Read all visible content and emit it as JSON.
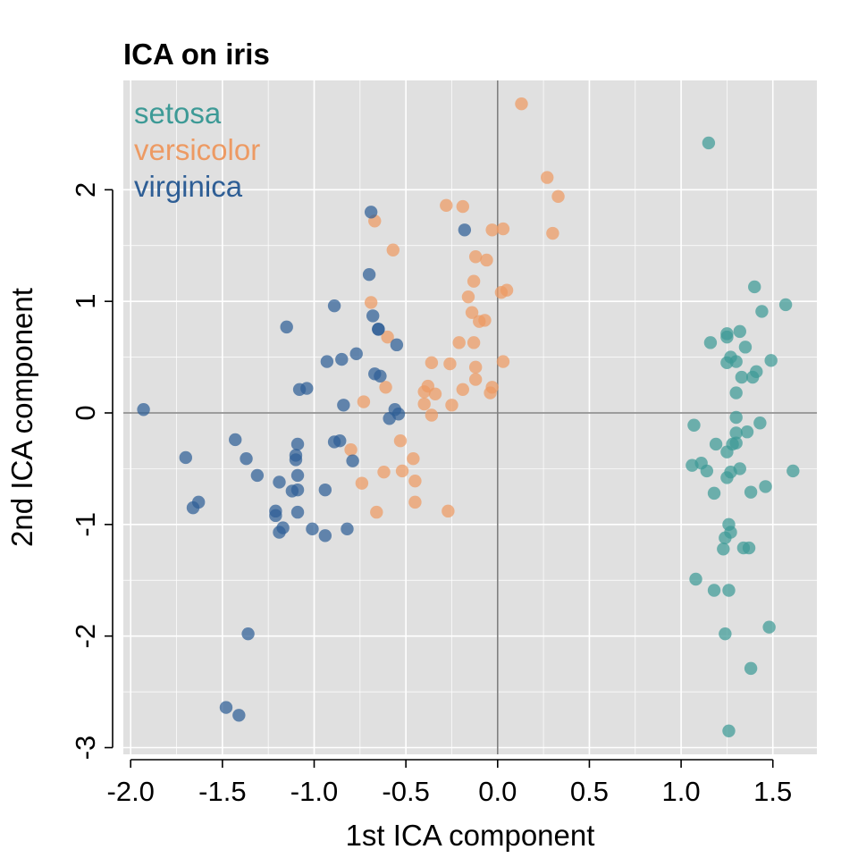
{
  "chart_data": {
    "type": "scatter",
    "title": "ICA on iris",
    "xlabel": "1st ICA component",
    "ylabel": "2nd ICA component",
    "xlim": [
      -2.04,
      1.74
    ],
    "ylim": [
      -3.06,
      2.98
    ],
    "xticks": [
      -2.0,
      -1.5,
      -1.0,
      -0.5,
      0.0,
      0.5,
      1.0,
      1.5
    ],
    "xtick_labels": [
      "-2.0",
      "-1.5",
      "-1.0",
      "-0.5",
      "0.0",
      "0.5",
      "1.0",
      "1.5"
    ],
    "yticks": [
      -3,
      -2,
      -1,
      0,
      1,
      2
    ],
    "ytick_labels": [
      "-3",
      "-2",
      "-1",
      "0",
      "1",
      "2"
    ],
    "grid": true,
    "reference_lines": {
      "x": 0,
      "y": 0
    },
    "legend_position": "top-left",
    "colors": {
      "panel_background": "#e0e0e0",
      "grid": "#ffffff",
      "reference_line": "#808080"
    },
    "series": [
      {
        "name": "setosa",
        "color": "#3d9a96",
        "points": [
          [
            1.15,
            2.42
          ],
          [
            1.4,
            1.13
          ],
          [
            1.57,
            0.97
          ],
          [
            1.44,
            0.91
          ],
          [
            1.25,
            0.71
          ],
          [
            1.32,
            0.73
          ],
          [
            1.16,
            0.63
          ],
          [
            1.25,
            0.68
          ],
          [
            1.35,
            0.59
          ],
          [
            1.27,
            0.5
          ],
          [
            1.49,
            0.47
          ],
          [
            1.3,
            0.46
          ],
          [
            1.25,
            0.45
          ],
          [
            1.41,
            0.37
          ],
          [
            1.33,
            0.32
          ],
          [
            1.39,
            0.32
          ],
          [
            1.3,
            0.18
          ],
          [
            1.3,
            -0.04
          ],
          [
            1.43,
            -0.09
          ],
          [
            1.07,
            -0.11
          ],
          [
            1.3,
            -0.18
          ],
          [
            1.36,
            -0.17
          ],
          [
            1.19,
            -0.28
          ],
          [
            1.3,
            -0.27
          ],
          [
            1.25,
            -0.35
          ],
          [
            1.28,
            -0.28
          ],
          [
            1.06,
            -0.47
          ],
          [
            1.11,
            -0.45
          ],
          [
            1.14,
            -0.52
          ],
          [
            1.27,
            -0.53
          ],
          [
            1.25,
            -0.58
          ],
          [
            1.32,
            -0.5
          ],
          [
            1.46,
            -0.66
          ],
          [
            1.38,
            -0.71
          ],
          [
            1.61,
            -0.52
          ],
          [
            1.18,
            -0.72
          ],
          [
            1.26,
            -1.0
          ],
          [
            1.27,
            -1.07
          ],
          [
            1.24,
            -1.12
          ],
          [
            1.23,
            -1.22
          ],
          [
            1.34,
            -1.21
          ],
          [
            1.37,
            -1.21
          ],
          [
            1.08,
            -1.49
          ],
          [
            1.18,
            -1.59
          ],
          [
            1.26,
            -1.59
          ],
          [
            1.48,
            -1.92
          ],
          [
            1.24,
            -1.98
          ],
          [
            1.38,
            -2.29
          ],
          [
            1.26,
            -2.85
          ]
        ]
      },
      {
        "name": "versicolor",
        "color": "#ed9a63",
        "points": [
          [
            0.13,
            2.77
          ],
          [
            0.27,
            2.11
          ],
          [
            0.33,
            1.94
          ],
          [
            -0.28,
            1.86
          ],
          [
            -0.19,
            1.85
          ],
          [
            -0.67,
            1.72
          ],
          [
            -0.03,
            1.64
          ],
          [
            0.03,
            1.65
          ],
          [
            0.3,
            1.61
          ],
          [
            -0.57,
            1.46
          ],
          [
            -0.12,
            1.4
          ],
          [
            -0.06,
            1.37
          ],
          [
            -0.13,
            1.18
          ],
          [
            0.02,
            1.08
          ],
          [
            0.05,
            1.1
          ],
          [
            -0.16,
            1.04
          ],
          [
            -0.69,
            0.99
          ],
          [
            -0.14,
            0.9
          ],
          [
            -0.1,
            0.82
          ],
          [
            -0.07,
            0.83
          ],
          [
            -0.6,
            0.68
          ],
          [
            -0.21,
            0.63
          ],
          [
            -0.13,
            0.63
          ],
          [
            -0.36,
            0.45
          ],
          [
            -0.26,
            0.44
          ],
          [
            -0.12,
            0.41
          ],
          [
            0.03,
            0.46
          ],
          [
            -0.12,
            0.3
          ],
          [
            -0.38,
            0.24
          ],
          [
            -0.61,
            0.23
          ],
          [
            -0.4,
            0.19
          ],
          [
            -0.34,
            0.17
          ],
          [
            -0.19,
            0.21
          ],
          [
            -0.04,
            0.18
          ],
          [
            -0.03,
            0.23
          ],
          [
            -0.73,
            0.1
          ],
          [
            -0.4,
            0.08
          ],
          [
            -0.25,
            0.07
          ],
          [
            -0.36,
            -0.02
          ],
          [
            -0.53,
            -0.25
          ],
          [
            -0.8,
            -0.33
          ],
          [
            -0.46,
            -0.41
          ],
          [
            -0.62,
            -0.53
          ],
          [
            -0.52,
            -0.52
          ],
          [
            -0.74,
            -0.63
          ],
          [
            -0.45,
            -0.61
          ],
          [
            -0.45,
            -0.8
          ],
          [
            -0.27,
            -0.88
          ],
          [
            -0.66,
            -0.89
          ]
        ]
      },
      {
        "name": "virginica",
        "color": "#2e5e95",
        "points": [
          [
            -0.69,
            1.8
          ],
          [
            -0.18,
            1.64
          ],
          [
            -0.7,
            1.24
          ],
          [
            -0.89,
            0.96
          ],
          [
            -0.68,
            0.87
          ],
          [
            -1.15,
            0.77
          ],
          [
            -0.65,
            0.75
          ],
          [
            -0.65,
            0.75
          ],
          [
            -0.55,
            0.61
          ],
          [
            -0.77,
            0.53
          ],
          [
            -0.85,
            0.48
          ],
          [
            -0.93,
            0.46
          ],
          [
            -0.67,
            0.35
          ],
          [
            -0.64,
            0.33
          ],
          [
            -1.04,
            0.22
          ],
          [
            -1.08,
            0.21
          ],
          [
            -0.84,
            0.07
          ],
          [
            -1.93,
            0.03
          ],
          [
            -0.56,
            0.03
          ],
          [
            -0.54,
            -0.01
          ],
          [
            -0.59,
            -0.05
          ],
          [
            -1.43,
            -0.24
          ],
          [
            -0.89,
            -0.26
          ],
          [
            -0.86,
            -0.25
          ],
          [
            -1.09,
            -0.28
          ],
          [
            -1.1,
            -0.38
          ],
          [
            -1.1,
            -0.42
          ],
          [
            -0.79,
            -0.43
          ],
          [
            -1.37,
            -0.41
          ],
          [
            -1.7,
            -0.4
          ],
          [
            -1.31,
            -0.56
          ],
          [
            -1.09,
            -0.56
          ],
          [
            -1.19,
            -0.62
          ],
          [
            -1.12,
            -0.7
          ],
          [
            -1.09,
            -0.69
          ],
          [
            -0.94,
            -0.69
          ],
          [
            -1.63,
            -0.8
          ],
          [
            -1.66,
            -0.85
          ],
          [
            -1.21,
            -0.88
          ],
          [
            -1.09,
            -0.89
          ],
          [
            -1.21,
            -0.92
          ],
          [
            -1.17,
            -1.03
          ],
          [
            -1.19,
            -1.07
          ],
          [
            -1.01,
            -1.04
          ],
          [
            -0.94,
            -1.1
          ],
          [
            -0.82,
            -1.04
          ],
          [
            -1.36,
            -1.98
          ],
          [
            -1.48,
            -2.64
          ],
          [
            -1.41,
            -2.71
          ]
        ]
      }
    ]
  }
}
